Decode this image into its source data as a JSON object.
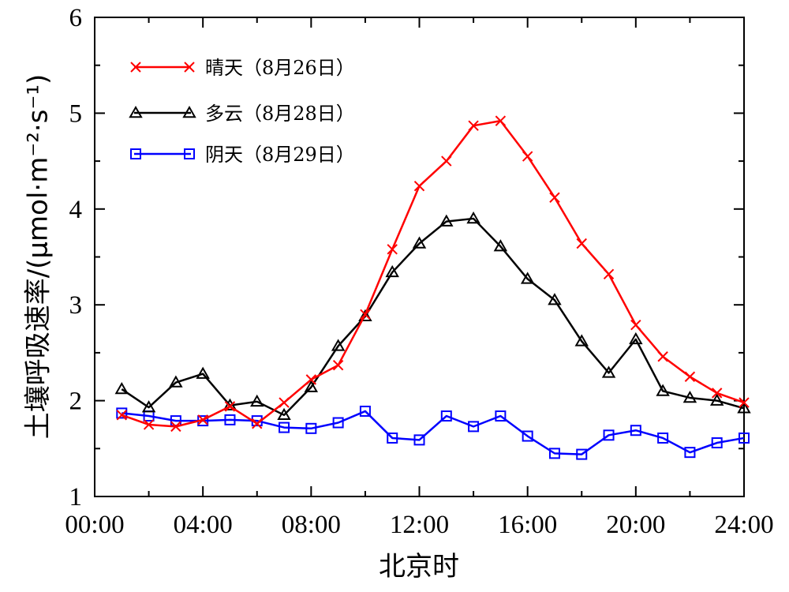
{
  "chart_data": {
    "type": "line",
    "xlabel": "北京时",
    "ylabel": "土壤呼吸速率/(μmol·m⁻²·s⁻¹)",
    "xlim": [
      0,
      24
    ],
    "ylim": [
      1,
      6
    ],
    "x_ticks": [
      {
        "value": 0,
        "label": "00:00"
      },
      {
        "value": 4,
        "label": "04:00"
      },
      {
        "value": 8,
        "label": "08:00"
      },
      {
        "value": 12,
        "label": "12:00"
      },
      {
        "value": 16,
        "label": "16:00"
      },
      {
        "value": 20,
        "label": "20:00"
      },
      {
        "value": 24,
        "label": "24:00"
      }
    ],
    "y_ticks": [
      {
        "value": 1,
        "label": "1"
      },
      {
        "value": 2,
        "label": "2"
      },
      {
        "value": 3,
        "label": "3"
      },
      {
        "value": 4,
        "label": "4"
      },
      {
        "value": 5,
        "label": "5"
      },
      {
        "value": 6,
        "label": "6"
      }
    ],
    "grid": false,
    "legend_position": "top-left",
    "x": [
      1,
      2,
      3,
      4,
      5,
      6,
      7,
      8,
      9,
      10,
      11,
      12,
      13,
      14,
      15,
      16,
      17,
      18,
      19,
      20,
      21,
      22,
      23,
      24
    ],
    "series": [
      {
        "name": "晴天（8月26日）",
        "color": "#ff0000",
        "marker": "x",
        "values": [
          1.85,
          1.75,
          1.73,
          1.8,
          1.94,
          1.76,
          1.98,
          2.22,
          2.37,
          2.9,
          3.58,
          4.24,
          4.5,
          4.87,
          4.92,
          4.55,
          4.12,
          3.64,
          3.32,
          2.79,
          2.46,
          2.25,
          2.08,
          1.98
        ]
      },
      {
        "name": "多云（8月28日）",
        "color": "#000000",
        "marker": "triangle",
        "values": [
          2.12,
          1.93,
          2.19,
          2.28,
          1.95,
          1.99,
          1.85,
          2.14,
          2.57,
          2.88,
          3.34,
          3.64,
          3.87,
          3.9,
          3.61,
          3.27,
          3.05,
          2.62,
          2.29,
          2.64,
          2.1,
          2.03,
          2.0,
          1.92
        ]
      },
      {
        "name": "阴天（8月29日）",
        "color": "#0000ff",
        "marker": "square",
        "values": [
          1.87,
          1.84,
          1.79,
          1.79,
          1.8,
          1.79,
          1.72,
          1.71,
          1.77,
          1.89,
          1.61,
          1.59,
          1.84,
          1.73,
          1.84,
          1.63,
          1.45,
          1.44,
          1.64,
          1.69,
          1.61,
          1.46,
          1.56,
          1.61
        ]
      }
    ]
  }
}
